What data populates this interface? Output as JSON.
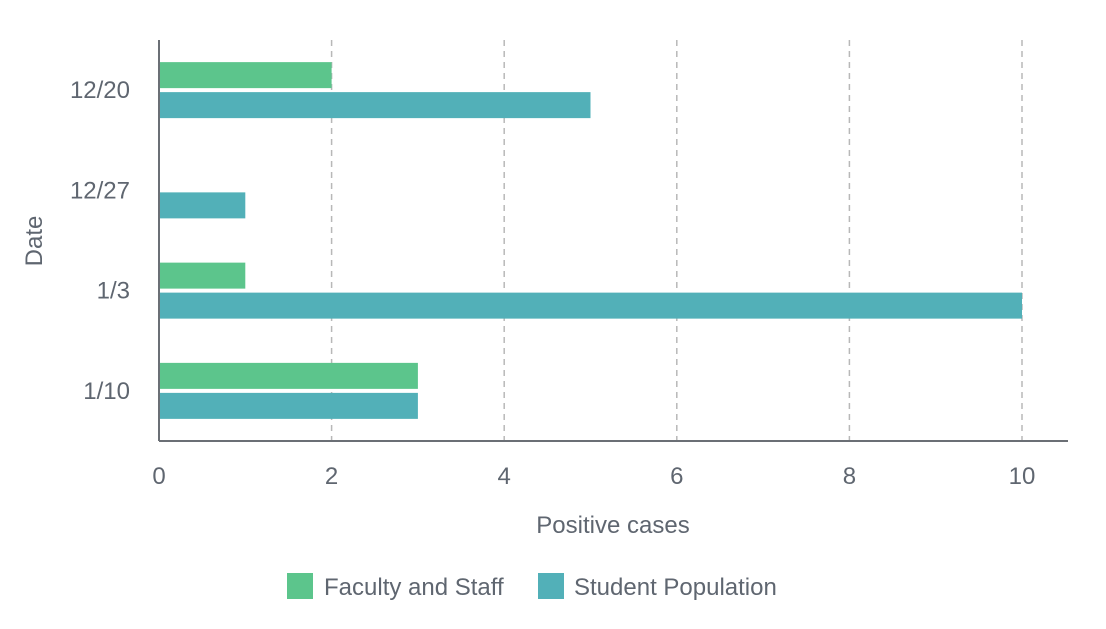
{
  "chart_data": {
    "type": "bar",
    "orientation": "horizontal",
    "categories": [
      "12/20",
      "12/27",
      "1/3",
      "1/10"
    ],
    "series": [
      {
        "name": "Faculty and Staff",
        "values": [
          2,
          0,
          1,
          3
        ],
        "color": "#5cc58c"
      },
      {
        "name": "Student Population",
        "values": [
          5,
          1,
          10,
          3
        ],
        "color": "#52b0b8"
      }
    ],
    "xlabel": "Positive cases",
    "ylabel": "Date",
    "xlim": [
      0,
      10
    ],
    "xticks": [
      "0",
      "2",
      "4",
      "6",
      "8",
      "10"
    ],
    "grid": "vertical dashed",
    "legend_position": "bottom-center"
  }
}
